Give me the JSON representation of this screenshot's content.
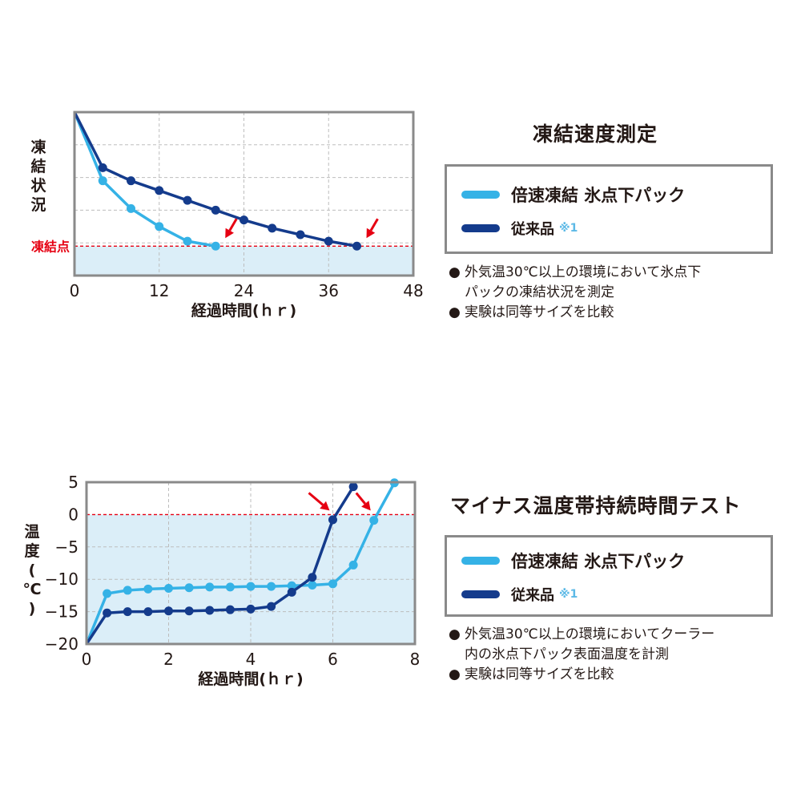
{
  "colors": {
    "new_product": "#35b2e6",
    "conventional": "#143b8c",
    "freeze_line": "#e60012",
    "arrow": "#e60012",
    "region_fill": "#dbeef8",
    "frame": "#8a8a8a",
    "grid": "#bdbdbd"
  },
  "section1": {
    "title": "凍結速度測定",
    "legend": {
      "new_product": "倍速凍結 氷点下パック",
      "conventional": "従来品",
      "note": "※1"
    },
    "notes": [
      {
        "bullet": "●",
        "lines": [
          "外気温30℃以上の環境において氷点下",
          "パックの凍結状況を測定"
        ]
      },
      {
        "bullet": "●",
        "lines": [
          "実験は同等サイズを比較"
        ]
      }
    ]
  },
  "section2": {
    "title": "マイナス温度帯持続時間テスト",
    "legend": {
      "new_product": "倍速凍結 氷点下パック",
      "conventional": "従来品",
      "note": "※1"
    },
    "notes": [
      {
        "bullet": "●",
        "lines": [
          "外気温30℃以上の環境においてクーラー",
          "内の氷点下パック表面温度を計測"
        ]
      },
      {
        "bullet": "●",
        "lines": [
          "実験は同等サイズを比較"
        ]
      }
    ]
  },
  "chart_data": [
    {
      "type": "line",
      "title": "凍結速度測定",
      "xlabel": "経過時間(ｈｒ)",
      "ylabel": "凍結状況",
      "ref_label": "凍結点",
      "xlim": [
        0,
        48
      ],
      "xticks": [
        "0",
        "12",
        "24",
        "36",
        "48"
      ],
      "ylim": [
        0,
        100
      ],
      "ref_value": 18,
      "grid": true,
      "series": [
        {
          "name": "倍速凍結 氷点下パック",
          "color": "#35b2e6",
          "x": [
            0,
            4,
            8,
            12,
            16,
            20
          ],
          "y": [
            100,
            58,
            41,
            30,
            21,
            18
          ],
          "markers": [
            4,
            8,
            12,
            16,
            20
          ]
        },
        {
          "name": "従来品",
          "color": "#143b8c",
          "x": [
            0,
            4,
            8,
            12,
            16,
            20,
            24,
            28,
            32,
            36,
            40
          ],
          "y": [
            100,
            66,
            58,
            52,
            46,
            40,
            34,
            29,
            25,
            21,
            18
          ],
          "markers": [
            4,
            8,
            12,
            16,
            20,
            24,
            28,
            32,
            36,
            40
          ]
        }
      ],
      "annotations": [
        {
          "type": "arrow",
          "x": 20,
          "y": 18
        },
        {
          "type": "arrow",
          "x": 40,
          "y": 18
        }
      ]
    },
    {
      "type": "line",
      "title": "マイナス温度帯持続時間テスト",
      "xlabel": "経過時間(ｈｒ)",
      "ylabel": "温度(℃)",
      "xlim": [
        0,
        8
      ],
      "xticks": [
        "0",
        "2",
        "4",
        "6",
        "8"
      ],
      "ylim": [
        -20,
        5
      ],
      "yticks": [
        "5",
        "0",
        "−5",
        "−10",
        "−15",
        "−20"
      ],
      "ref_value": 0,
      "grid": true,
      "series": [
        {
          "name": "倍速凍結 氷点下パック",
          "color": "#35b2e6",
          "x": [
            0,
            0.5,
            1,
            1.5,
            2,
            2.5,
            3,
            3.5,
            4,
            4.5,
            5,
            5.5,
            6,
            6.5,
            7,
            7.5
          ],
          "y": [
            -20,
            -12.2,
            -11.7,
            -11.5,
            -11.4,
            -11.3,
            -11.2,
            -11.2,
            -11.1,
            -11.1,
            -11.0,
            -10.9,
            -10.7,
            -7.8,
            -0.9,
            4.9
          ],
          "markers": [
            0.5,
            1,
            1.5,
            2,
            2.5,
            3,
            3.5,
            4,
            4.5,
            5,
            5.5,
            6,
            6.5,
            7,
            7.5
          ]
        },
        {
          "name": "従来品",
          "color": "#143b8c",
          "x": [
            0,
            0.5,
            1,
            1.5,
            2,
            2.5,
            3,
            3.5,
            4,
            4.5,
            5,
            5.5,
            6,
            6.5
          ],
          "y": [
            -20,
            -15.2,
            -15.0,
            -15.0,
            -14.9,
            -14.9,
            -14.8,
            -14.7,
            -14.6,
            -14.2,
            -12.0,
            -9.7,
            -0.8,
            4.3
          ],
          "markers": [
            0.5,
            1,
            1.5,
            2,
            2.5,
            3,
            3.5,
            4,
            4.5,
            5,
            5.5,
            6,
            6.5
          ]
        }
      ],
      "annotations": [
        {
          "type": "arrow",
          "x": 6,
          "y": 0
        },
        {
          "type": "arrow",
          "x": 7,
          "y": 0
        }
      ]
    }
  ]
}
